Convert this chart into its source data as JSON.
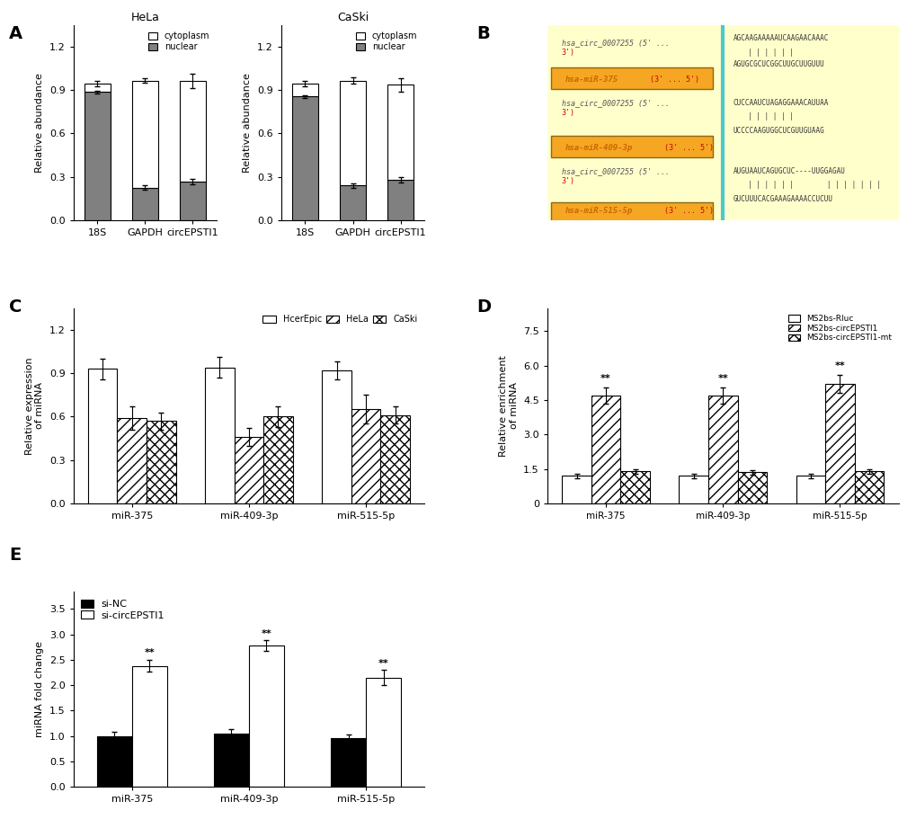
{
  "panel_A": {
    "HeLa": {
      "categories": [
        "18S",
        "GAPDH",
        "circEPSTI1"
      ],
      "cytoplasm": [
        0.06,
        0.74,
        0.7
      ],
      "nuclear": [
        0.885,
        0.225,
        0.265
      ],
      "total": [
        0.965,
        0.965,
        0.965
      ],
      "nuclear_err": [
        0.012,
        0.015,
        0.018
      ],
      "total_err": [
        0.02,
        0.018,
        0.05
      ]
    },
    "CaSki": {
      "categories": [
        "18S",
        "GAPDH",
        "circEPSTI1"
      ],
      "cytoplasm": [
        0.09,
        0.725,
        0.655
      ],
      "nuclear": [
        0.855,
        0.24,
        0.28
      ],
      "total": [
        0.945,
        0.965,
        0.935
      ],
      "nuclear_err": [
        0.01,
        0.015,
        0.02
      ],
      "total_err": [
        0.018,
        0.02,
        0.045
      ]
    }
  },
  "panel_C": {
    "categories": [
      "miR-375",
      "miR-409-3p",
      "miR-515-5p"
    ],
    "HcerEpic": [
      0.93,
      0.94,
      0.92
    ],
    "HeLa": [
      0.59,
      0.46,
      0.65
    ],
    "CaSki": [
      0.57,
      0.6,
      0.61
    ],
    "HcerEpic_err": [
      0.07,
      0.07,
      0.06
    ],
    "HeLa_err": [
      0.08,
      0.06,
      0.1
    ],
    "CaSki_err": [
      0.06,
      0.07,
      0.06
    ],
    "ylabel": "Relative expression\nof miRNA",
    "ylim": [
      0,
      1.35
    ]
  },
  "panel_D": {
    "categories": [
      "miR-375",
      "miR-409-3p",
      "miR-515-5p"
    ],
    "MS2bs_Rluc": [
      1.2,
      1.2,
      1.2
    ],
    "MS2bs_circEPSTI1": [
      4.7,
      4.7,
      5.2
    ],
    "MS2bs_circEPSTI1mt": [
      1.4,
      1.35,
      1.4
    ],
    "MS2bs_Rluc_err": [
      0.1,
      0.1,
      0.1
    ],
    "MS2bs_circEPSTI1_err": [
      0.35,
      0.35,
      0.4
    ],
    "MS2bs_circEPSTI1mt_err": [
      0.1,
      0.1,
      0.1
    ],
    "ylabel": "Relative enrichment\nof miRNA",
    "ylim": [
      0,
      8.5
    ],
    "yticks": [
      0,
      1.5,
      3.0,
      4.5,
      6.0,
      7.5
    ]
  },
  "panel_E": {
    "categories": [
      "miR-375",
      "miR-409-3p",
      "miR-515-5p"
    ],
    "si_NC": [
      1.0,
      1.05,
      0.95
    ],
    "si_circEPSTI1": [
      2.38,
      2.78,
      2.15
    ],
    "si_NC_err": [
      0.08,
      0.08,
      0.08
    ],
    "si_circEPSTI1_err": [
      0.12,
      0.1,
      0.15
    ],
    "ylabel": "miRNA fold change",
    "ylim": [
      0,
      3.85
    ],
    "yticks": [
      0,
      0.5,
      1.0,
      1.5,
      2.0,
      2.5,
      3.0,
      3.5
    ]
  },
  "colors": {
    "gray": "#808080",
    "white": "#ffffff",
    "light_gray_hatch": "#d0d0d0",
    "black": "#000000"
  }
}
